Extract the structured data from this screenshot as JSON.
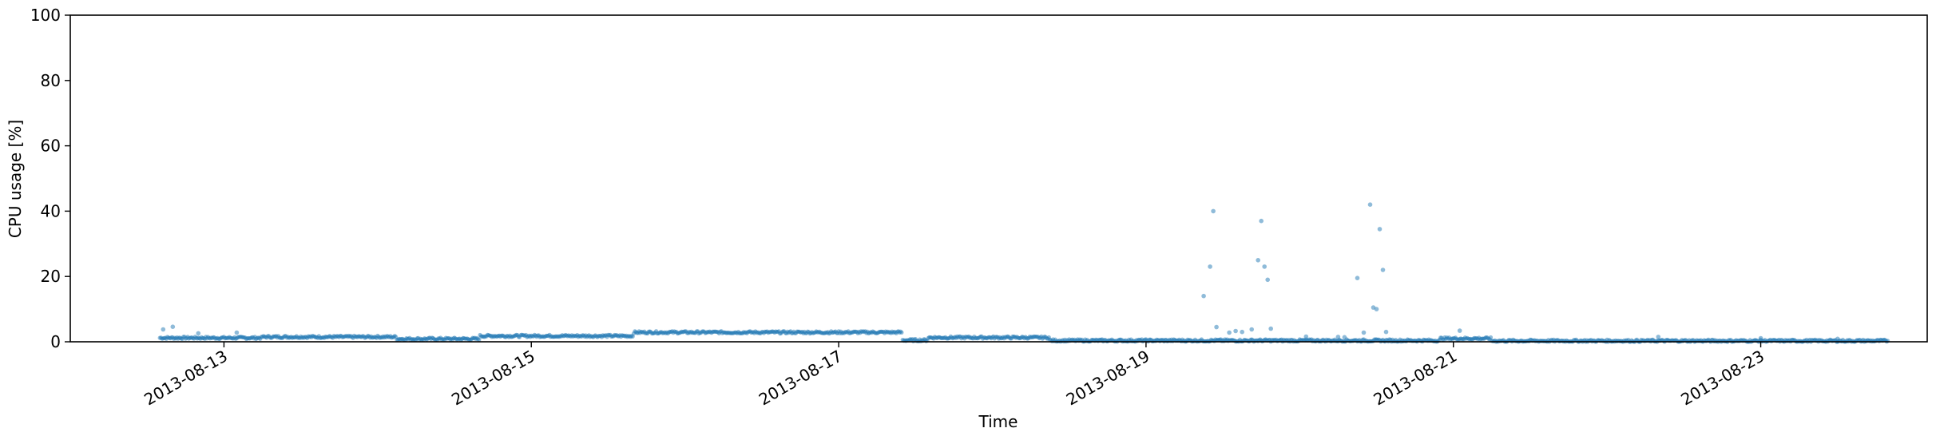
{
  "chart_data": {
    "type": "scatter",
    "title": "",
    "xlabel": "Time",
    "ylabel": "CPU usage [%]",
    "ylim": [
      0,
      100
    ],
    "xlim": [
      "2013-08-12T00:00",
      "2013-08-24T02:00"
    ],
    "grid": false,
    "color": "#1f77b4",
    "point_opacity": 0.5,
    "x_ticks": [
      "2013-08-13",
      "2013-08-15",
      "2013-08-17",
      "2013-08-19",
      "2013-08-21",
      "2013-08-23"
    ],
    "y_ticks": [
      "0",
      "20",
      "40",
      "60",
      "80",
      "100"
    ],
    "baseline_segments": [
      {
        "start": "2013-08-12T14:00",
        "end": "2013-08-13T06:00",
        "level": 1.2
      },
      {
        "start": "2013-08-13T06:00",
        "end": "2013-08-14T03:00",
        "level": 1.5
      },
      {
        "start": "2013-08-14T03:00",
        "end": "2013-08-14T16:00",
        "level": 0.9
      },
      {
        "start": "2013-08-14T16:00",
        "end": "2013-08-15T16:00",
        "level": 1.8
      },
      {
        "start": "2013-08-15T16:00",
        "end": "2013-08-17T10:00",
        "level": 2.9
      },
      {
        "start": "2013-08-17T10:00",
        "end": "2013-08-17T14:00",
        "level": 0.5
      },
      {
        "start": "2013-08-17T14:00",
        "end": "2013-08-18T09:00",
        "level": 1.3
      },
      {
        "start": "2013-08-18T09:00",
        "end": "2013-08-20T22:00",
        "level": 0.4
      },
      {
        "start": "2013-08-20T22:00",
        "end": "2013-08-21T06:00",
        "level": 1.0
      },
      {
        "start": "2013-08-21T06:00",
        "end": "2013-08-23T20:00",
        "level": 0.3
      }
    ],
    "outliers": [
      {
        "x": "2013-08-12T14:30",
        "y": 3.8
      },
      {
        "x": "2013-08-12T16:00",
        "y": 4.6
      },
      {
        "x": "2013-08-12T20:00",
        "y": 2.6
      },
      {
        "x": "2013-08-13T02:00",
        "y": 2.8
      },
      {
        "x": "2013-08-19T09:00",
        "y": 14.0
      },
      {
        "x": "2013-08-19T10:00",
        "y": 23.0
      },
      {
        "x": "2013-08-19T10:30",
        "y": 40.0
      },
      {
        "x": "2013-08-19T11:00",
        "y": 4.5
      },
      {
        "x": "2013-08-19T13:00",
        "y": 2.8
      },
      {
        "x": "2013-08-19T14:00",
        "y": 3.3
      },
      {
        "x": "2013-08-19T15:00",
        "y": 3.0
      },
      {
        "x": "2013-08-19T16:30",
        "y": 3.8
      },
      {
        "x": "2013-08-19T17:30",
        "y": 25.0
      },
      {
        "x": "2013-08-19T18:00",
        "y": 37.0
      },
      {
        "x": "2013-08-19T18:30",
        "y": 23.0
      },
      {
        "x": "2013-08-19T19:00",
        "y": 19.0
      },
      {
        "x": "2013-08-19T19:30",
        "y": 4.0
      },
      {
        "x": "2013-08-20T01:00",
        "y": 1.6
      },
      {
        "x": "2013-08-20T06:00",
        "y": 1.5
      },
      {
        "x": "2013-08-20T07:00",
        "y": 1.4
      },
      {
        "x": "2013-08-20T09:00",
        "y": 19.5
      },
      {
        "x": "2013-08-20T10:00",
        "y": 2.8
      },
      {
        "x": "2013-08-20T11:00",
        "y": 42.0
      },
      {
        "x": "2013-08-20T11:30",
        "y": 10.5
      },
      {
        "x": "2013-08-20T12:00",
        "y": 10.0
      },
      {
        "x": "2013-08-20T12:30",
        "y": 34.5
      },
      {
        "x": "2013-08-20T13:00",
        "y": 22.0
      },
      {
        "x": "2013-08-20T13:30",
        "y": 3.0
      },
      {
        "x": "2013-08-21T01:00",
        "y": 3.4
      },
      {
        "x": "2013-08-22T08:00",
        "y": 1.5
      },
      {
        "x": "2013-08-23T00:00",
        "y": 1.1
      },
      {
        "x": "2013-08-23T12:00",
        "y": 0.9
      }
    ]
  }
}
